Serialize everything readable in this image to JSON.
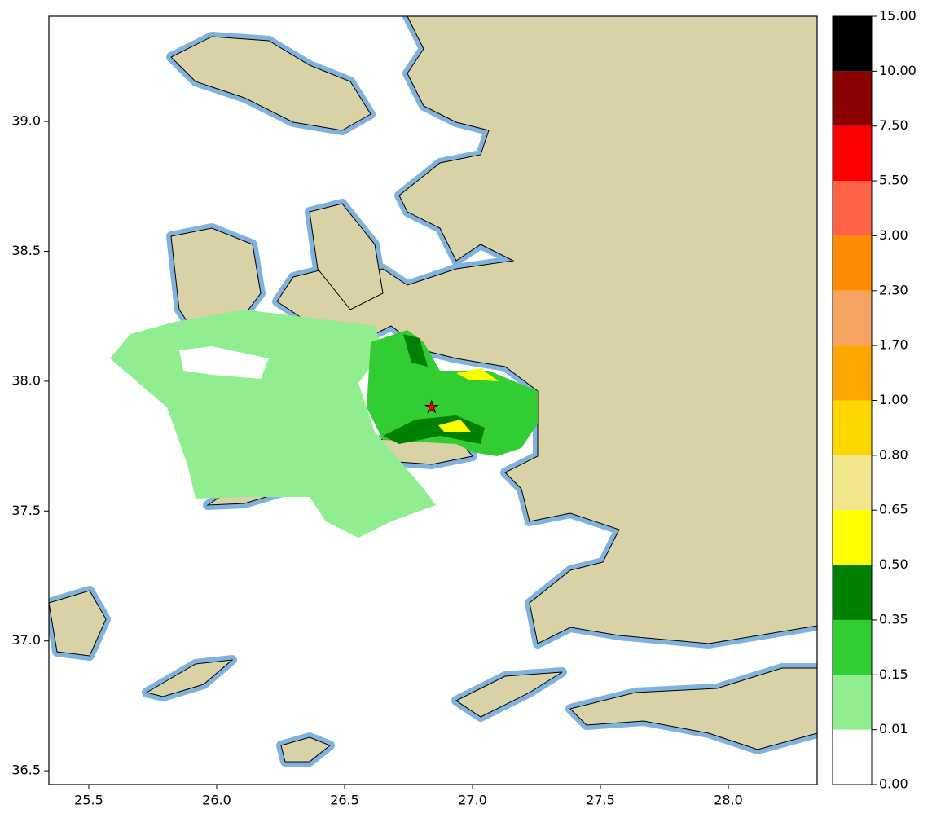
{
  "chart_data": {
    "type": "map",
    "xlim": [
      25.344,
      28.347
    ],
    "ylim": [
      36.447,
      39.405
    ],
    "xticks": [
      25.5,
      {
        "value": 26,
        "label": "26.0"
      },
      26.5,
      {
        "value": 27,
        "label": "27.0"
      },
      27.5,
      {
        "value": 28,
        "label": "28.0"
      }
    ],
    "yticks": [
      36.5,
      {
        "value": 37,
        "label": "37.0"
      },
      37.5,
      {
        "value": 38,
        "label": "38.0"
      },
      38.5,
      {
        "value": 39,
        "label": "39.0"
      }
    ],
    "epicenter": {
      "lon": 26.84,
      "lat": 37.9,
      "color": "#ff0000"
    },
    "colorbar": {
      "levels": [
        {
          "value": 0,
          "label": "0.00"
        },
        {
          "value": 0.01,
          "label": "0.01"
        },
        {
          "value": 0.15,
          "label": "0.15"
        },
        {
          "value": 0.35,
          "label": "0.35"
        },
        {
          "value": 0.5,
          "label": "0.50"
        },
        {
          "value": 0.65,
          "label": "0.65"
        },
        {
          "value": 0.8,
          "label": "0.80"
        },
        {
          "value": 1,
          "label": "1.00"
        },
        {
          "value": 1.7,
          "label": "1.70"
        },
        {
          "value": 2.3,
          "label": "2.30"
        },
        {
          "value": 3,
          "label": "3.00"
        },
        {
          "value": 5.5,
          "label": "5.50"
        },
        {
          "value": 7.5,
          "label": "7.50"
        },
        {
          "value": 10,
          "label": "10.00"
        },
        {
          "value": 15,
          "label": "15.00"
        }
      ],
      "colors": [
        "#ffffff",
        "#90ee90",
        "#32cd32",
        "#008000",
        "#ffff00",
        "#f0e68c",
        "#ffd700",
        "#ffa500",
        "#f4a460",
        "#ff8c00",
        "#ff6347",
        "#ff0000",
        "#8b0000",
        "#000000"
      ]
    }
  }
}
